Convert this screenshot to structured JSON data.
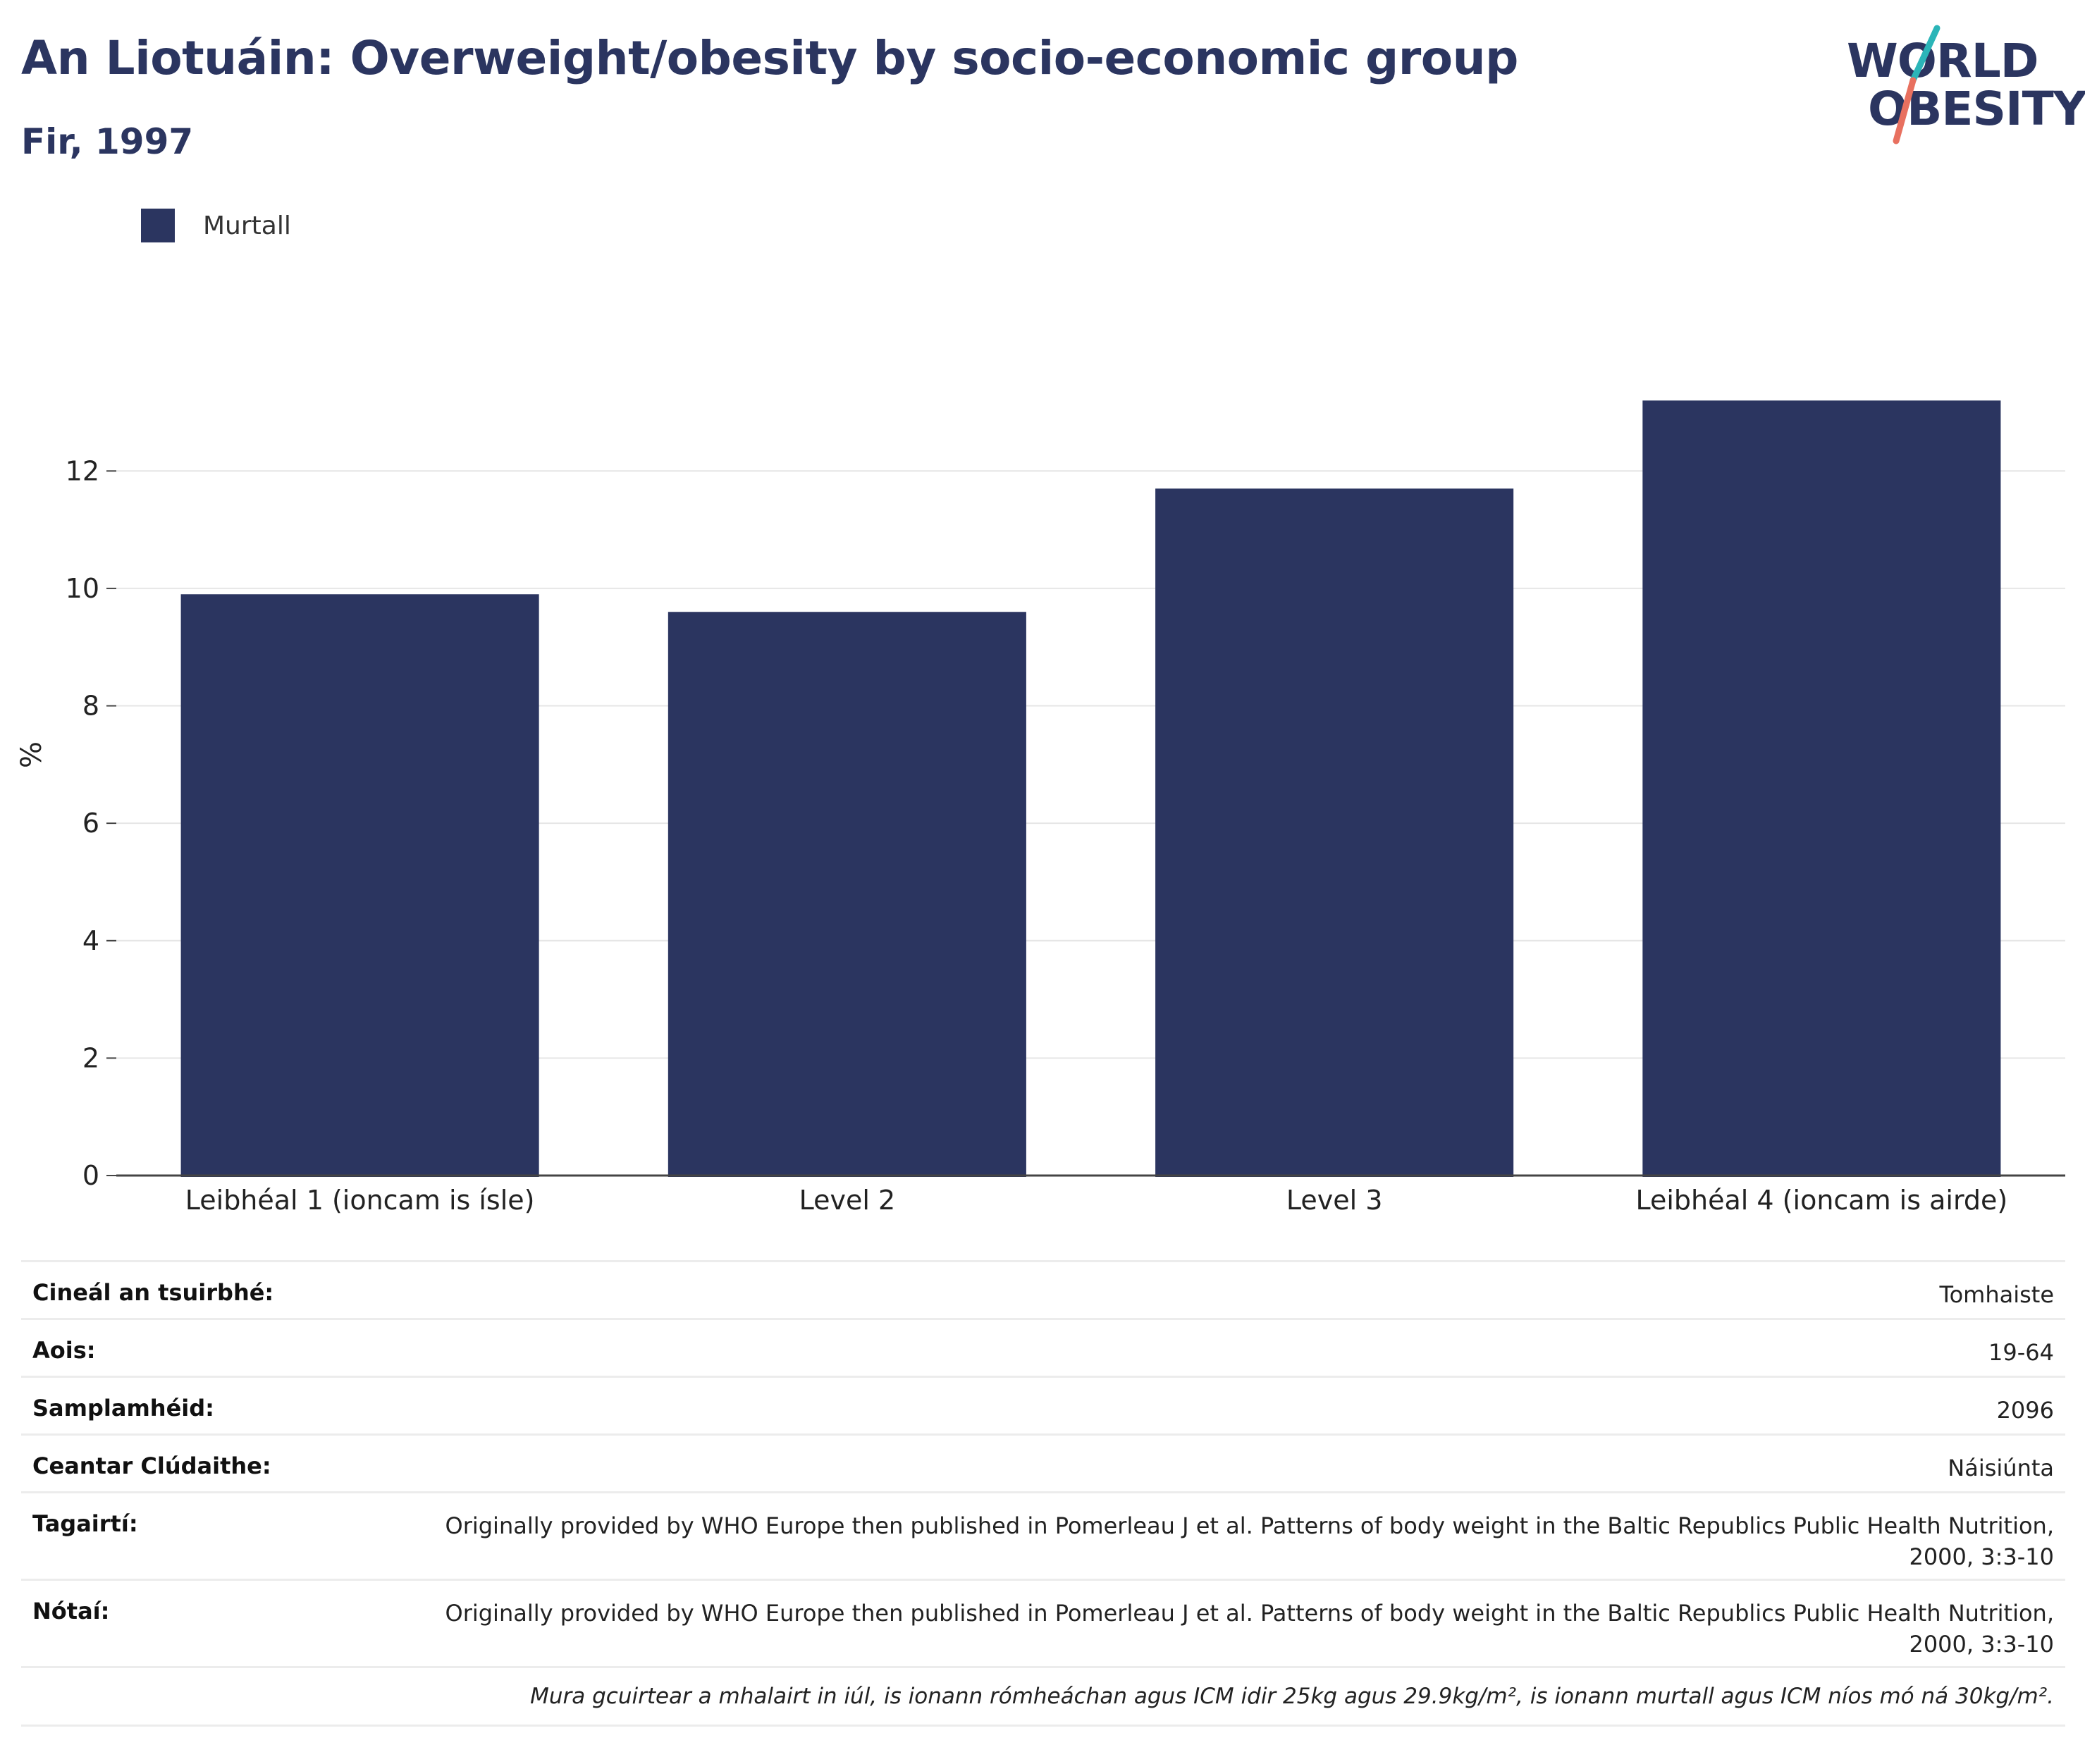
{
  "header": {
    "title": "An Liotuáin: Overweight/obesity by socio-economic group",
    "subtitle": "Fir, 1997"
  },
  "logo": {
    "line1": "WORLD",
    "line2": "OBESITY",
    "accent_teal": "#2bb5b8",
    "accent_coral": "#e8705f"
  },
  "legend": {
    "label": "Murtall",
    "color": "#2b3560"
  },
  "chart_data": {
    "type": "bar",
    "categories": [
      "Leibhéal 1 (ioncam is ísle)",
      "Level 2",
      "Level 3",
      "Leibhéal 4 (ioncam is airde)"
    ],
    "series": [
      {
        "name": "Murtall",
        "values": [
          9.9,
          9.6,
          11.7,
          13.2
        ],
        "color": "#2b3560"
      }
    ],
    "ylabel": "%",
    "ylim": [
      0,
      14
    ],
    "yticks": [
      0,
      2,
      4,
      6,
      8,
      10,
      12
    ],
    "grid": true
  },
  "meta": {
    "rows": [
      {
        "key": "Cineál an tsuirbhé:",
        "value": "Tomhaiste"
      },
      {
        "key": "Aois:",
        "value": "19-64"
      },
      {
        "key": "Samplamhéid:",
        "value": "2096"
      },
      {
        "key": "Ceantar Clúdaithe:",
        "value": "Náisiúnta"
      },
      {
        "key": "Tagairtí:",
        "value": "Originally provided by WHO Europe then published in Pomerleau J et al. Patterns of body weight in the Baltic Republics Public Health Nutrition, 2000, 3:3-10"
      },
      {
        "key": "Nótaí:",
        "value": "Originally provided by WHO Europe then published in Pomerleau J et al. Patterns of body weight in the Baltic Republics Public Health Nutrition, 2000, 3:3-10"
      }
    ],
    "note": "Mura gcuirtear a mhalairt in iúl, is ionann rómheáchan agus ICM idir 25kg agus 29.9kg/m², is ionann murtall agus ICM níos mó ná 30kg/m²."
  }
}
